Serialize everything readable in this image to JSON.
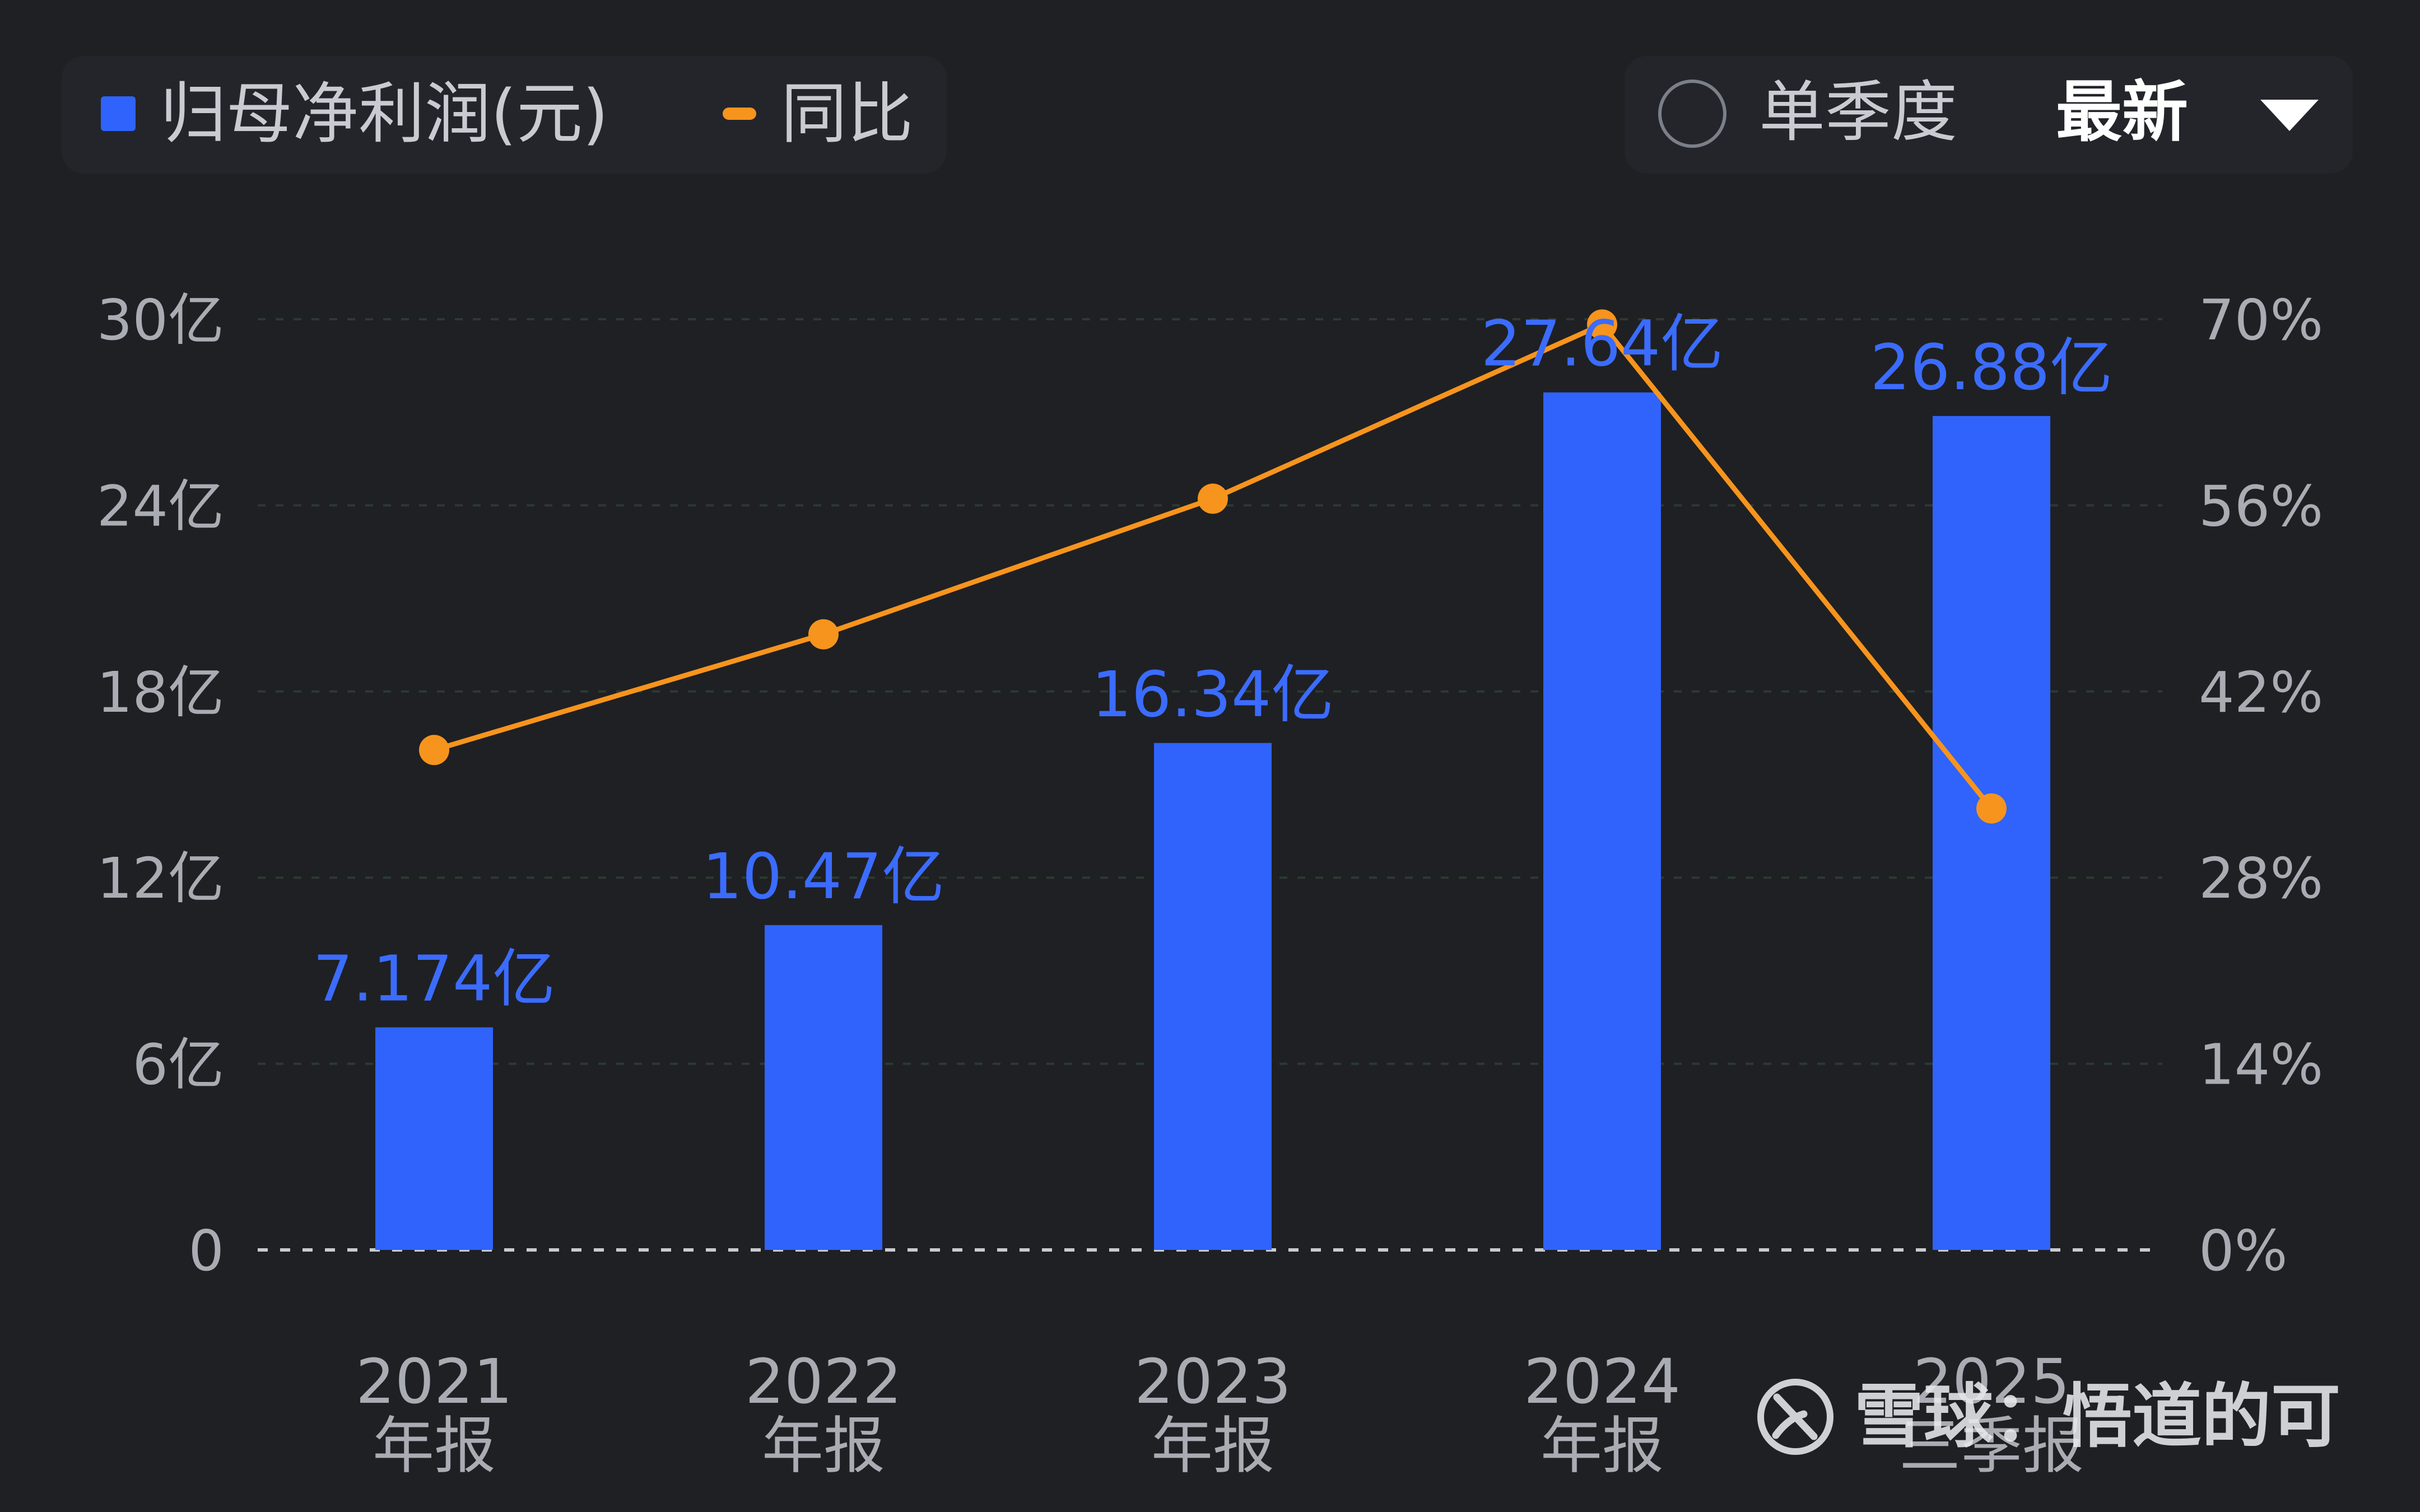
{
  "legend": {
    "bar_label": "归母净利润(元)",
    "line_label": "同比"
  },
  "controls": {
    "period_option": "单季度",
    "sort_label": "最新"
  },
  "watermark": {
    "text": "雪球：悟道的可"
  },
  "colors": {
    "bar": "#2f63fb",
    "line": "#f7941d",
    "label": "#3b6cff",
    "background": "#1f2023"
  },
  "chart_data": {
    "type": "bar",
    "categories": [
      [
        "2021",
        "年报"
      ],
      [
        "2022",
        "年报"
      ],
      [
        "2023",
        "年报"
      ],
      [
        "2024",
        "年报"
      ],
      [
        "2025",
        "三季报"
      ]
    ],
    "series": [
      {
        "name": "归母净利润(元)",
        "type": "bar",
        "axis": "left",
        "values": [
          7.174,
          10.47,
          16.34,
          27.64,
          26.88
        ],
        "labels": [
          "7.174亿",
          "10.47亿",
          "16.34亿",
          "27.64亿",
          "26.88亿"
        ]
      },
      {
        "name": "同比",
        "type": "line",
        "axis": "right",
        "values": [
          37.6,
          46.3,
          56.5,
          69.6,
          33.2
        ]
      }
    ],
    "left_axis": {
      "min": 0,
      "max": 30,
      "ticks": [
        0,
        6,
        12,
        18,
        24,
        30
      ],
      "tick_labels": [
        "0",
        "6亿",
        "12亿",
        "18亿",
        "24亿",
        "30亿"
      ]
    },
    "right_axis": {
      "min": 0,
      "max": 70,
      "ticks": [
        0,
        14,
        28,
        42,
        56,
        70
      ],
      "tick_labels": [
        "0%",
        "14%",
        "28%",
        "42%",
        "56%",
        "70%"
      ]
    },
    "gridlines": true
  }
}
